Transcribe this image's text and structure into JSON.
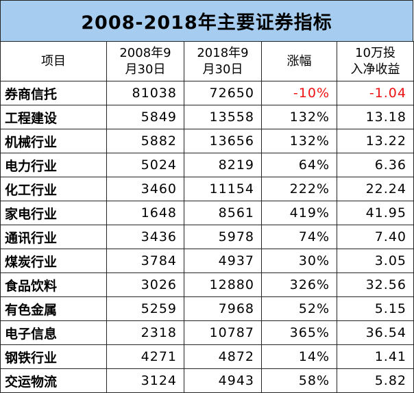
{
  "title": "2008-2018年主要证券指标",
  "headers": [
    "项目",
    "2008年9\n月30日",
    "2018年9\n月30日",
    "涨幅",
    "10万投\n入净收益"
  ],
  "header_lines": [
    [
      "项目"
    ],
    [
      "2008年9",
      "月30日"
    ],
    [
      "2018年9",
      "月30日"
    ],
    [
      "涨幅"
    ],
    [
      "10万投",
      "入净收益"
    ]
  ],
  "negative_color": "#ee1111",
  "title_bg": "#a6cdf0",
  "rows": [
    {
      "name": "券商信托",
      "v2008": "81038",
      "v2018": "72650",
      "change": "-10%",
      "return": "-1.04",
      "negative": true
    },
    {
      "name": "工程建设",
      "v2008": "5849",
      "v2018": "13558",
      "change": "132%",
      "return": "13.18"
    },
    {
      "name": "机械行业",
      "v2008": "5882",
      "v2018": "13656",
      "change": "132%",
      "return": "13.22"
    },
    {
      "name": "电力行业",
      "v2008": "5024",
      "v2018": "8219",
      "change": "64%",
      "return": "6.36"
    },
    {
      "name": "化工行业",
      "v2008": "3460",
      "v2018": "11154",
      "change": "222%",
      "return": "22.24"
    },
    {
      "name": "家电行业",
      "v2008": "1648",
      "v2018": "8561",
      "change": "419%",
      "return": "41.95"
    },
    {
      "name": "通讯行业",
      "v2008": "3436",
      "v2018": "5978",
      "change": "74%",
      "return": "7.40"
    },
    {
      "name": "煤炭行业",
      "v2008": "3784",
      "v2018": "4937",
      "change": "30%",
      "return": "3.05"
    },
    {
      "name": "食品饮料",
      "v2008": "3026",
      "v2018": "12880",
      "change": "326%",
      "return": "32.56"
    },
    {
      "name": "有色金属",
      "v2008": "5259",
      "v2018": "7968",
      "change": "52%",
      "return": "5.15"
    },
    {
      "name": "电子信息",
      "v2008": "2318",
      "v2018": "10787",
      "change": "365%",
      "return": "36.54"
    },
    {
      "name": "钢铁行业",
      "v2008": "4271",
      "v2018": "4872",
      "change": "14%",
      "return": "1.41"
    },
    {
      "name": "交运物流",
      "v2008": "3124",
      "v2018": "4943",
      "change": "58%",
      "return": "5.82"
    }
  ]
}
